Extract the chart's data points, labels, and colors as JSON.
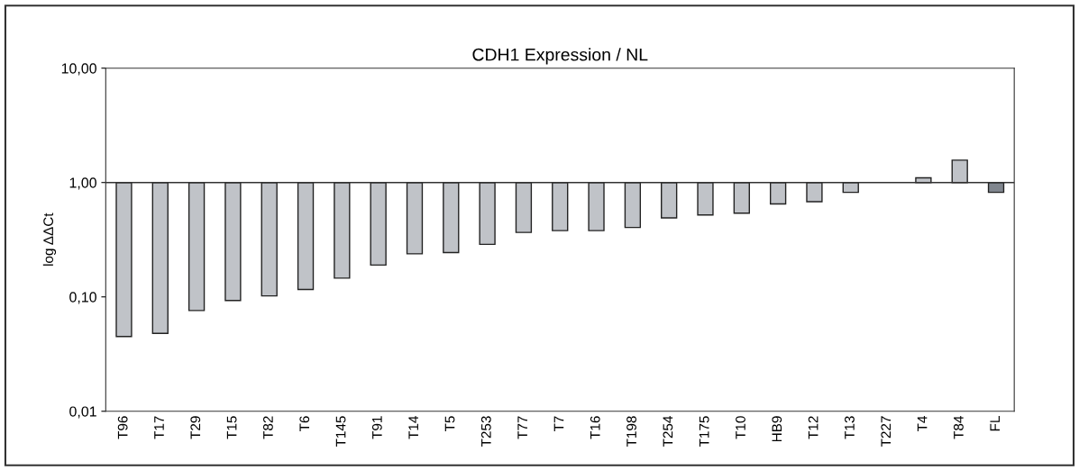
{
  "chart_data": {
    "type": "bar",
    "title": "CDH1 Expression / NL",
    "ylabel": "log ΔΔCt",
    "categories": [
      "T96",
      "T17",
      "T29",
      "T15",
      "T82",
      "T6",
      "T145",
      "T91",
      "T14",
      "T5",
      "T253",
      "T77",
      "T7",
      "T16",
      "T198",
      "T254",
      "T175",
      "T10",
      "HB9",
      "T12",
      "T13",
      "T227",
      "T4",
      "T84",
      "FL"
    ],
    "values": [
      -0.955,
      -0.952,
      -0.924,
      -0.907,
      -0.898,
      -0.884,
      -0.854,
      -0.81,
      -0.762,
      -0.756,
      -0.712,
      -0.634,
      -0.62,
      -0.62,
      -0.595,
      -0.51,
      -0.48,
      -0.46,
      -0.35,
      -0.32,
      -0.18,
      null,
      0.1,
      0.57,
      -0.18
    ],
    "base": [
      1,
      1,
      1,
      1,
      1,
      1,
      1,
      1,
      1,
      1,
      1,
      1,
      1,
      1,
      1,
      1,
      1,
      1,
      1,
      1,
      1,
      null,
      1,
      1,
      1
    ],
    "colors": [
      "#c0c3c8",
      "#c0c3c8",
      "#c0c3c8",
      "#c0c3c8",
      "#c0c3c8",
      "#c0c3c8",
      "#c0c3c8",
      "#c0c3c8",
      "#c0c3c8",
      "#c0c3c8",
      "#c0c3c8",
      "#c0c3c8",
      "#c0c3c8",
      "#c0c3c8",
      "#c0c3c8",
      "#c0c3c8",
      "#c0c3c8",
      "#c0c3c8",
      "#c0c3c8",
      "#c0c3c8",
      "#c0c3c8",
      "#c0c3c8",
      "#c0c3c8",
      "#c0c3c8",
      "#80868e"
    ],
    "log": "y",
    "ylim": [
      0.01,
      10
    ],
    "yticks": [
      {
        "value": 0.01,
        "label": "0,01"
      },
      {
        "value": 0.1,
        "label": "0,10"
      },
      {
        "value": 1,
        "label": "1,00"
      },
      {
        "value": 10,
        "label": "10,00"
      }
    ],
    "ref_lines": [
      {
        "axis": "y",
        "value": 1,
        "color": "#333333"
      }
    ],
    "grid": false,
    "legend": false
  }
}
